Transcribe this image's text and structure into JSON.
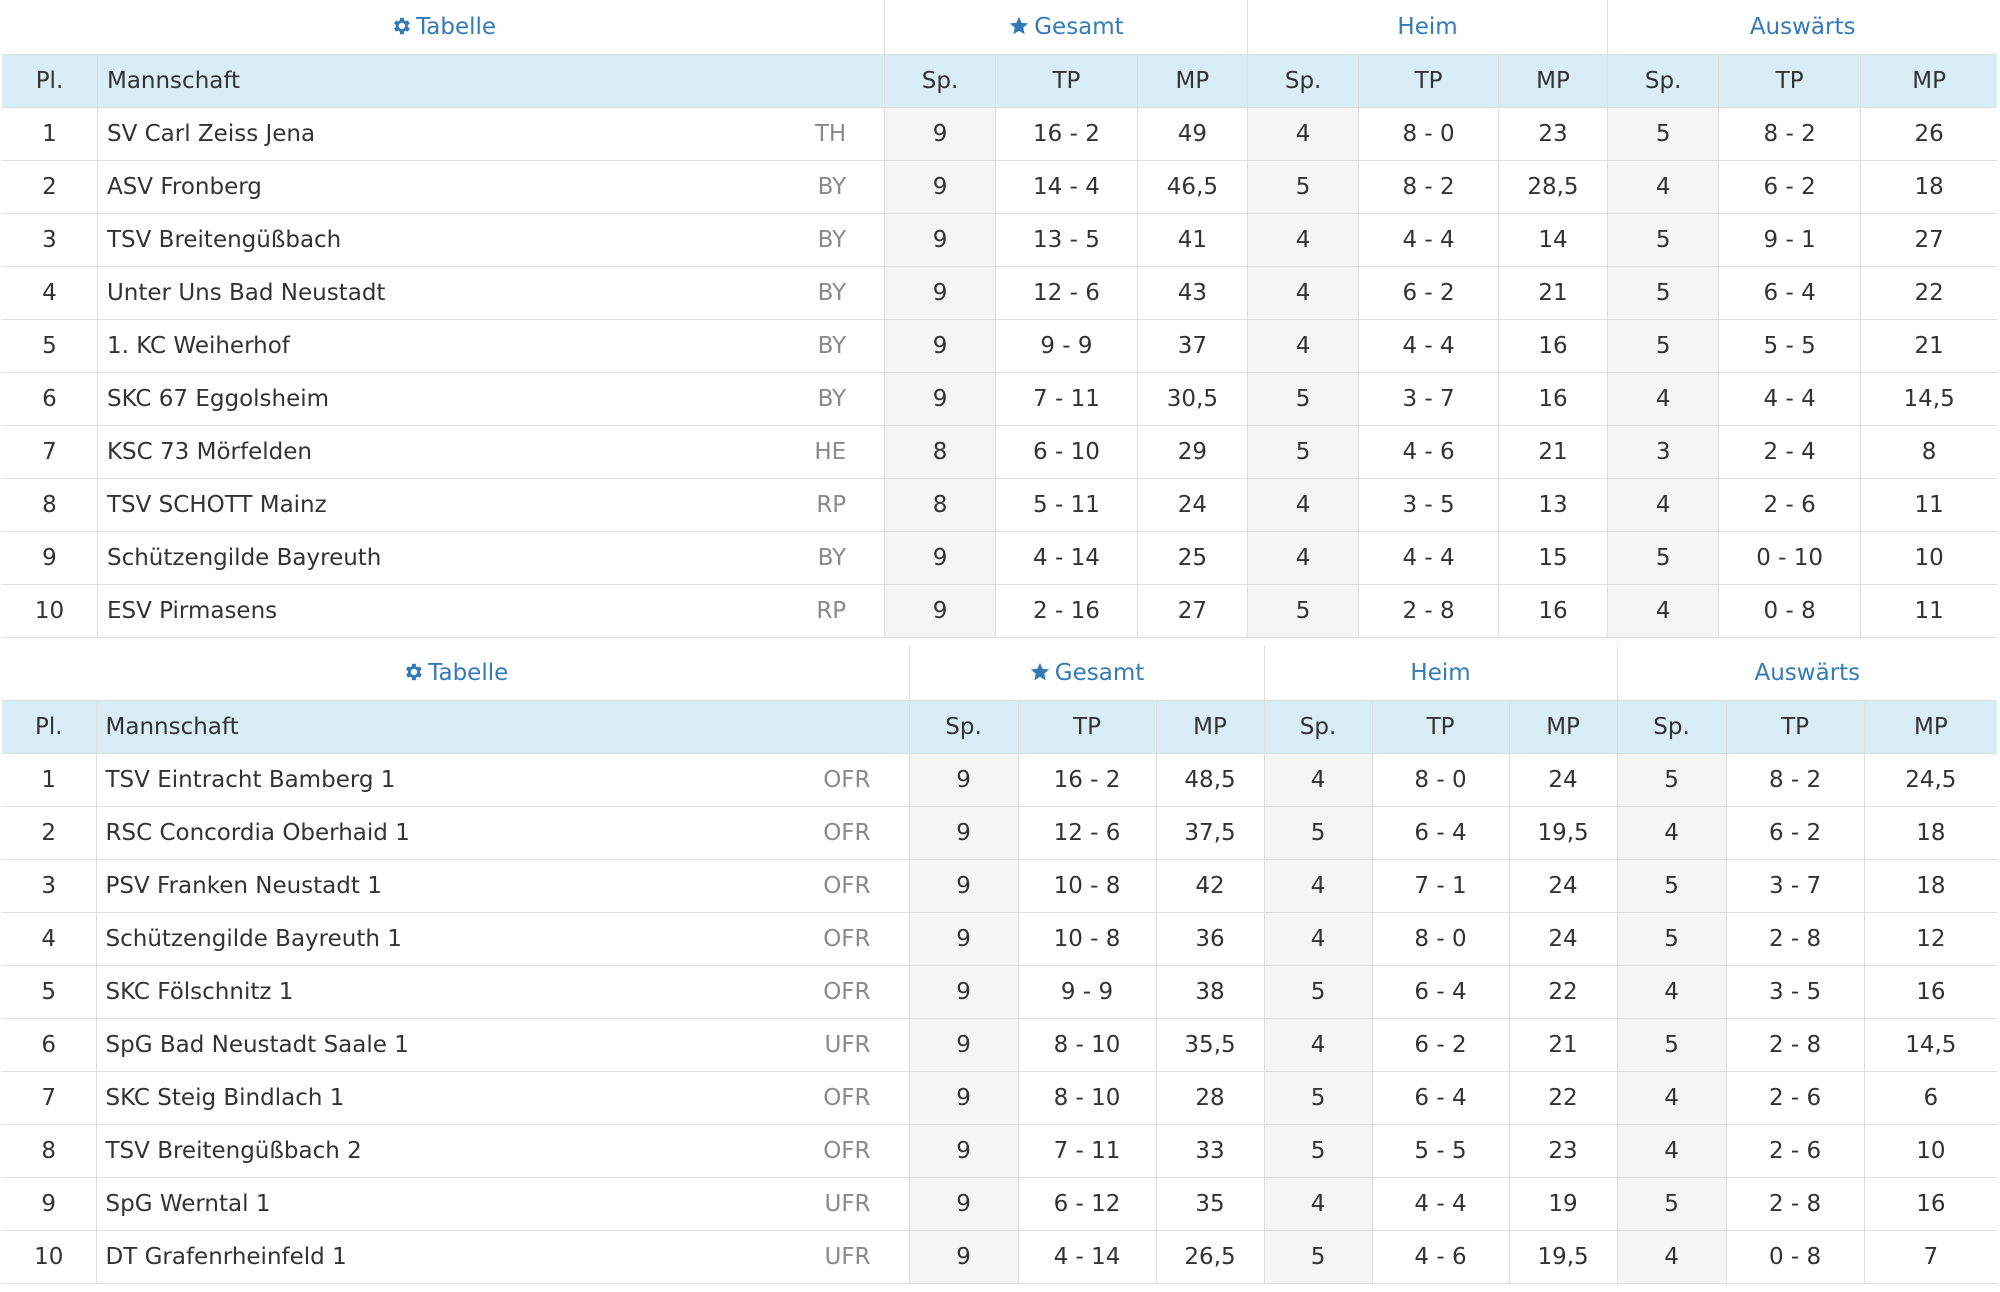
{
  "tables": [
    {
      "id": "a",
      "groups": {
        "table": "Tabelle",
        "total": "Gesamt",
        "home": "Heim",
        "away": "Auswärts"
      },
      "columns": {
        "place": "Pl.",
        "team": "Mannschaft",
        "games": "Sp.",
        "tp": "TP",
        "mp": "MP"
      },
      "rows": [
        {
          "place": "1",
          "team": "SV Carl Zeiss Jena",
          "region": "TH",
          "games": "9",
          "tp": "16 - 2",
          "mp": "49",
          "home_games": "4",
          "home_tp": "8 - 0",
          "home_mp": "23",
          "away_games": "5",
          "away_tp": "8 - 2",
          "away_mp": "26"
        },
        {
          "place": "2",
          "team": "ASV Fronberg",
          "region": "BY",
          "games": "9",
          "tp": "14 - 4",
          "mp": "46,5",
          "home_games": "5",
          "home_tp": "8 - 2",
          "home_mp": "28,5",
          "away_games": "4",
          "away_tp": "6 - 2",
          "away_mp": "18"
        },
        {
          "place": "3",
          "team": "TSV Breitengüßbach",
          "region": "BY",
          "games": "9",
          "tp": "13 - 5",
          "mp": "41",
          "home_games": "4",
          "home_tp": "4 - 4",
          "home_mp": "14",
          "away_games": "5",
          "away_tp": "9 - 1",
          "away_mp": "27"
        },
        {
          "place": "4",
          "team": "Unter Uns Bad Neustadt",
          "region": "BY",
          "games": "9",
          "tp": "12 - 6",
          "mp": "43",
          "home_games": "4",
          "home_tp": "6 - 2",
          "home_mp": "21",
          "away_games": "5",
          "away_tp": "6 - 4",
          "away_mp": "22"
        },
        {
          "place": "5",
          "team": "1. KC Weiherhof",
          "region": "BY",
          "games": "9",
          "tp": "9 - 9",
          "mp": "37",
          "home_games": "4",
          "home_tp": "4 - 4",
          "home_mp": "16",
          "away_games": "5",
          "away_tp": "5 - 5",
          "away_mp": "21"
        },
        {
          "place": "6",
          "team": "SKC 67 Eggolsheim",
          "region": "BY",
          "games": "9",
          "tp": "7 - 11",
          "mp": "30,5",
          "home_games": "5",
          "home_tp": "3 - 7",
          "home_mp": "16",
          "away_games": "4",
          "away_tp": "4 - 4",
          "away_mp": "14,5"
        },
        {
          "place": "7",
          "team": "KSC 73 Mörfelden",
          "region": "HE",
          "games": "8",
          "tp": "6 - 10",
          "mp": "29",
          "home_games": "5",
          "home_tp": "4 - 6",
          "home_mp": "21",
          "away_games": "3",
          "away_tp": "2 - 4",
          "away_mp": "8"
        },
        {
          "place": "8",
          "team": "TSV SCHOTT Mainz",
          "region": "RP",
          "games": "8",
          "tp": "5 - 11",
          "mp": "24",
          "home_games": "4",
          "home_tp": "3 - 5",
          "home_mp": "13",
          "away_games": "4",
          "away_tp": "2 - 6",
          "away_mp": "11"
        },
        {
          "place": "9",
          "team": "Schützengilde Bayreuth",
          "region": "BY",
          "games": "9",
          "tp": "4 - 14",
          "mp": "25",
          "home_games": "4",
          "home_tp": "4 - 4",
          "home_mp": "15",
          "away_games": "5",
          "away_tp": "0 - 10",
          "away_mp": "10"
        },
        {
          "place": "10",
          "team": "ESV Pirmasens",
          "region": "RP",
          "games": "9",
          "tp": "2 - 16",
          "mp": "27",
          "home_games": "5",
          "home_tp": "2 - 8",
          "home_mp": "16",
          "away_games": "4",
          "away_tp": "0 - 8",
          "away_mp": "11"
        }
      ]
    },
    {
      "id": "b",
      "groups": {
        "table": "Tabelle",
        "total": "Gesamt",
        "home": "Heim",
        "away": "Auswärts"
      },
      "columns": {
        "place": "Pl.",
        "team": "Mannschaft",
        "games": "Sp.",
        "tp": "TP",
        "mp": "MP"
      },
      "rows": [
        {
          "place": "1",
          "team": "TSV Eintracht Bamberg 1",
          "region": "OFR",
          "games": "9",
          "tp": "16 - 2",
          "mp": "48,5",
          "home_games": "4",
          "home_tp": "8 - 0",
          "home_mp": "24",
          "away_games": "5",
          "away_tp": "8 - 2",
          "away_mp": "24,5"
        },
        {
          "place": "2",
          "team": "RSC Concordia Oberhaid 1",
          "region": "OFR",
          "games": "9",
          "tp": "12 - 6",
          "mp": "37,5",
          "home_games": "5",
          "home_tp": "6 - 4",
          "home_mp": "19,5",
          "away_games": "4",
          "away_tp": "6 - 2",
          "away_mp": "18"
        },
        {
          "place": "3",
          "team": "PSV Franken Neustadt 1",
          "region": "OFR",
          "games": "9",
          "tp": "10 - 8",
          "mp": "42",
          "home_games": "4",
          "home_tp": "7 - 1",
          "home_mp": "24",
          "away_games": "5",
          "away_tp": "3 - 7",
          "away_mp": "18"
        },
        {
          "place": "4",
          "team": "Schützengilde Bayreuth 1",
          "region": "OFR",
          "games": "9",
          "tp": "10 - 8",
          "mp": "36",
          "home_games": "4",
          "home_tp": "8 - 0",
          "home_mp": "24",
          "away_games": "5",
          "away_tp": "2 - 8",
          "away_mp": "12"
        },
        {
          "place": "5",
          "team": "SKC Fölschnitz 1",
          "region": "OFR",
          "games": "9",
          "tp": "9 - 9",
          "mp": "38",
          "home_games": "5",
          "home_tp": "6 - 4",
          "home_mp": "22",
          "away_games": "4",
          "away_tp": "3 - 5",
          "away_mp": "16"
        },
        {
          "place": "6",
          "team": "SpG Bad Neustadt Saale 1",
          "region": "UFR",
          "games": "9",
          "tp": "8 - 10",
          "mp": "35,5",
          "home_games": "4",
          "home_tp": "6 - 2",
          "home_mp": "21",
          "away_games": "5",
          "away_tp": "2 - 8",
          "away_mp": "14,5"
        },
        {
          "place": "7",
          "team": "SKC Steig Bindlach 1",
          "region": "OFR",
          "games": "9",
          "tp": "8 - 10",
          "mp": "28",
          "home_games": "5",
          "home_tp": "6 - 4",
          "home_mp": "22",
          "away_games": "4",
          "away_tp": "2 - 6",
          "away_mp": "6"
        },
        {
          "place": "8",
          "team": "TSV Breitengüßbach 2",
          "region": "OFR",
          "games": "9",
          "tp": "7 - 11",
          "mp": "33",
          "home_games": "5",
          "home_tp": "5 - 5",
          "home_mp": "23",
          "away_games": "4",
          "away_tp": "2 - 6",
          "away_mp": "10"
        },
        {
          "place": "9",
          "team": "SpG Werntal 1",
          "region": "UFR",
          "games": "9",
          "tp": "6 - 12",
          "mp": "35",
          "home_games": "4",
          "home_tp": "4 - 4",
          "home_mp": "19",
          "away_games": "5",
          "away_tp": "2 - 8",
          "away_mp": "16"
        },
        {
          "place": "10",
          "team": "DT Grafenrheinfeld 1",
          "region": "UFR",
          "games": "9",
          "tp": "4 - 14",
          "mp": "26,5",
          "home_games": "5",
          "home_tp": "4 - 6",
          "home_mp": "19,5",
          "away_games": "4",
          "away_tp": "0 - 8",
          "away_mp": "7"
        }
      ]
    }
  ],
  "icons": {
    "table_group": "gear-icon",
    "total_group": "star-icon"
  },
  "colors": {
    "link": "#337ab7",
    "header_bg": "#d9edf7",
    "shaded_cell": "#f5f5f5",
    "region_text": "#8a8a8a",
    "border": "#dddddd"
  }
}
